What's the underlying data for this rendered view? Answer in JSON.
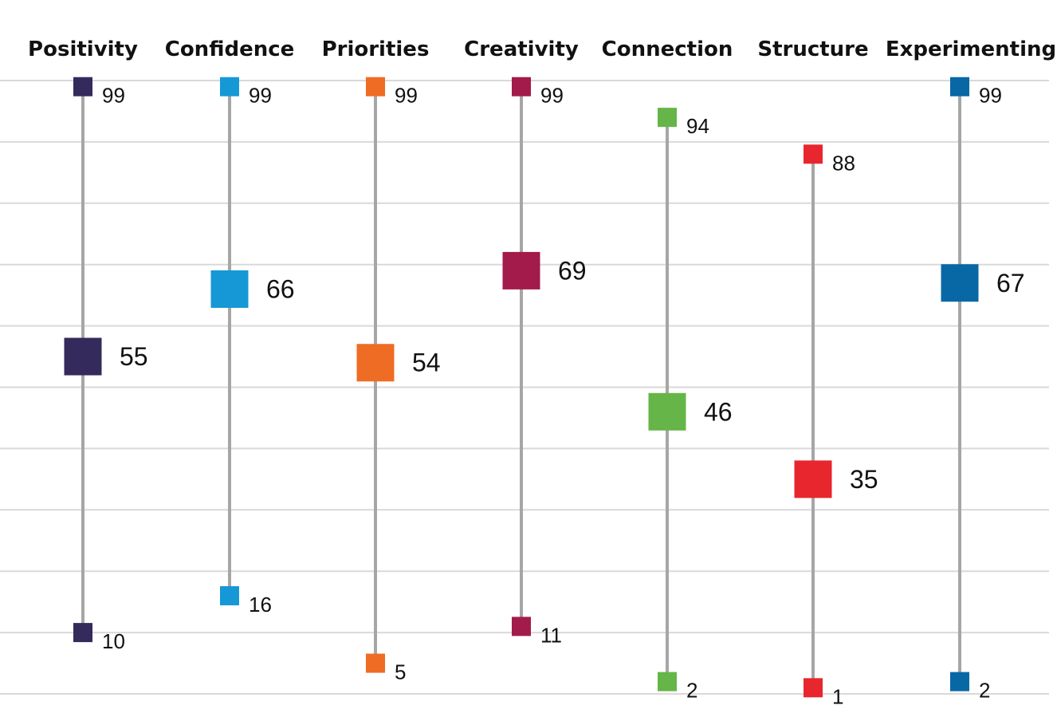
{
  "chart_data": {
    "type": "range",
    "title": "",
    "xlabel": "",
    "ylabel": "",
    "ylim": [
      0,
      100
    ],
    "grid": true,
    "legend": "none",
    "categories": [
      "Positivity",
      "Confidence",
      "Priorities",
      "Creativity",
      "Connection",
      "Structure",
      "Experimenting"
    ],
    "series": [
      {
        "name": "",
        "values": [
          99,
          99,
          99,
          99,
          94,
          88,
          99
        ]
      },
      {
        "name": "",
        "values": [
          55,
          66,
          54,
          69,
          46,
          35,
          67
        ]
      },
      {
        "name": "",
        "values": [
          10,
          16,
          5,
          11,
          2,
          1,
          2
        ]
      }
    ],
    "colors": [
      "#352a5c",
      "#1598d5",
      "#ef6c24",
      "#a31b4a",
      "#65b548",
      "#e8262d",
      "#0867a5"
    ]
  }
}
